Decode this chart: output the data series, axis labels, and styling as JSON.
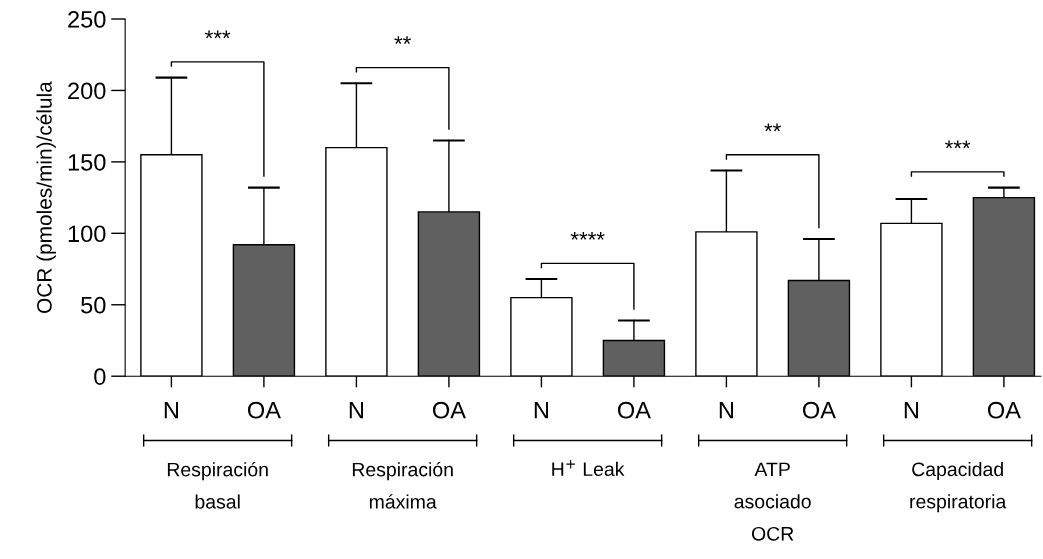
{
  "chart_data": {
    "type": "bar",
    "ylabel": "OCR (pmoles/min)/célula",
    "categories": [
      "N",
      "OA",
      "N",
      "OA",
      "N",
      "OA",
      "N",
      "OA",
      "N",
      "OA"
    ],
    "values": [
      155,
      92,
      160,
      115,
      55,
      25,
      101,
      67,
      107,
      125
    ],
    "colors": [
      "#ffffff",
      "#606060",
      "#ffffff",
      "#606060",
      "#ffffff",
      "#606060",
      "#ffffff",
      "#606060",
      "#ffffff",
      "#606060"
    ],
    "errors": [
      [
        155,
        209
      ],
      [
        92,
        132
      ],
      [
        160,
        205
      ],
      [
        115,
        165
      ],
      [
        55,
        68
      ],
      [
        25,
        39
      ],
      [
        101,
        144
      ],
      [
        67,
        96
      ],
      [
        107,
        124
      ],
      [
        125,
        132
      ]
    ],
    "ylim": [
      0,
      250
    ],
    "yticks": [
      0,
      50,
      100,
      150,
      200,
      250
    ],
    "annotations": [
      "***",
      "**",
      "****",
      "**",
      "***",
      "Respiración\nbasal",
      "Respiración\nmáxima",
      "H$^{+}$ Leak",
      "ATP\nasociado\nOCR",
      "Capacidad\nrespiratoria"
    ]
  }
}
